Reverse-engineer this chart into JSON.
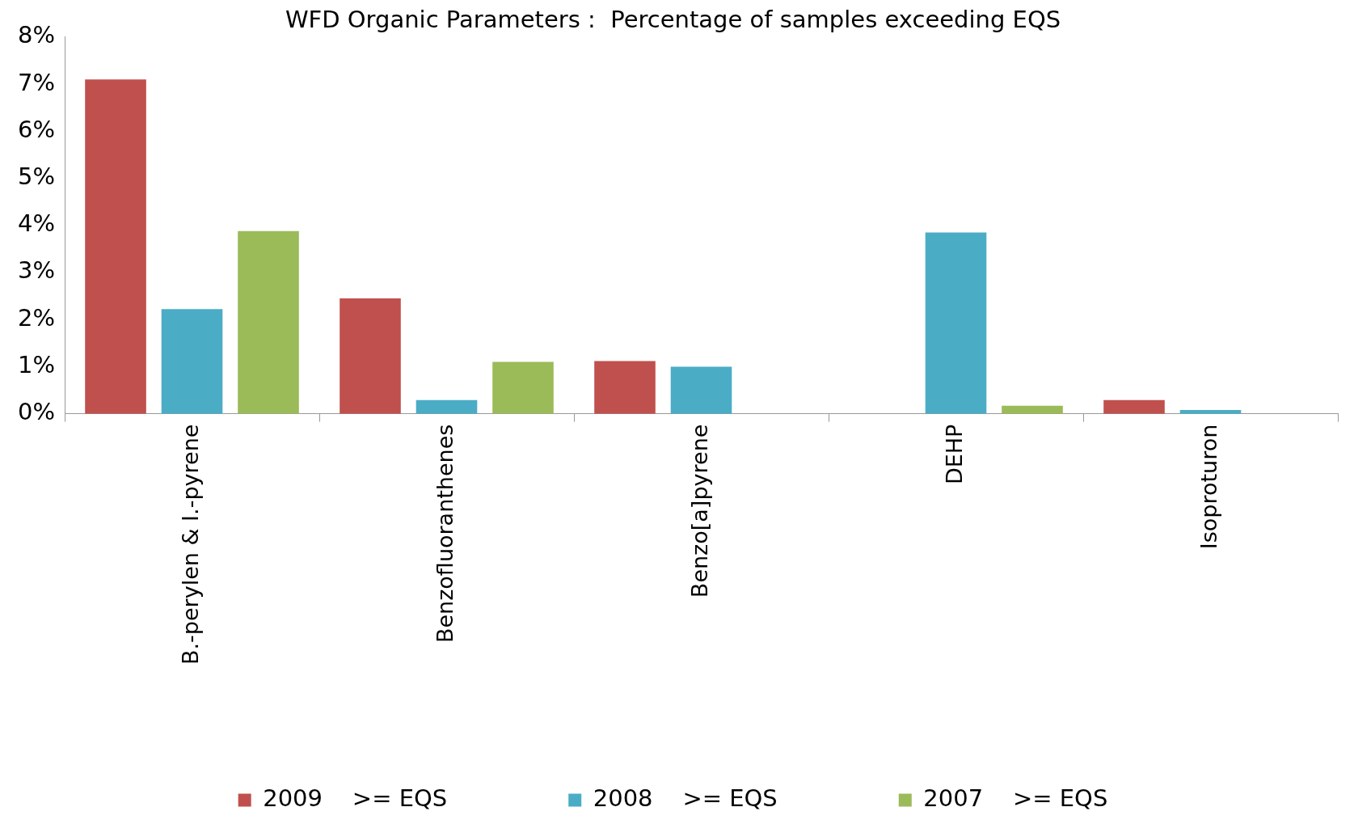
{
  "chart_data": {
    "type": "bar",
    "title": "WFD Organic Parameters :  Percentage of samples exceeding EQS",
    "categories": [
      "B.-perylen & I.-pyrene",
      "Benzofluoranthenes",
      "Benzo[a]pyrene",
      "DEHP",
      "Isoproturon"
    ],
    "series": [
      {
        "name": "2009    >= EQS",
        "color": "#c0504d",
        "values": [
          7.1,
          2.45,
          1.12,
          0,
          0.29
        ]
      },
      {
        "name": "2008    >= EQS",
        "color": "#4bacc6",
        "values": [
          2.22,
          0.29,
          1.0,
          3.85,
          0.08
        ]
      },
      {
        "name": "2007    >= EQS",
        "color": "#9bbb59",
        "values": [
          3.88,
          1.1,
          0,
          0.17,
          0
        ]
      }
    ],
    "ylim": [
      0,
      8
    ],
    "yticks": [
      {
        "value": 0,
        "label": "0%"
      },
      {
        "value": 1,
        "label": "1%"
      },
      {
        "value": 2,
        "label": "2%"
      },
      {
        "value": 3,
        "label": "3%"
      },
      {
        "value": 4,
        "label": "4%"
      },
      {
        "value": 5,
        "label": "5%"
      },
      {
        "value": 6,
        "label": "6%"
      },
      {
        "value": 7,
        "label": "7%"
      },
      {
        "value": 8,
        "label": "8%"
      }
    ],
    "grid": false,
    "legend": "bottom"
  }
}
